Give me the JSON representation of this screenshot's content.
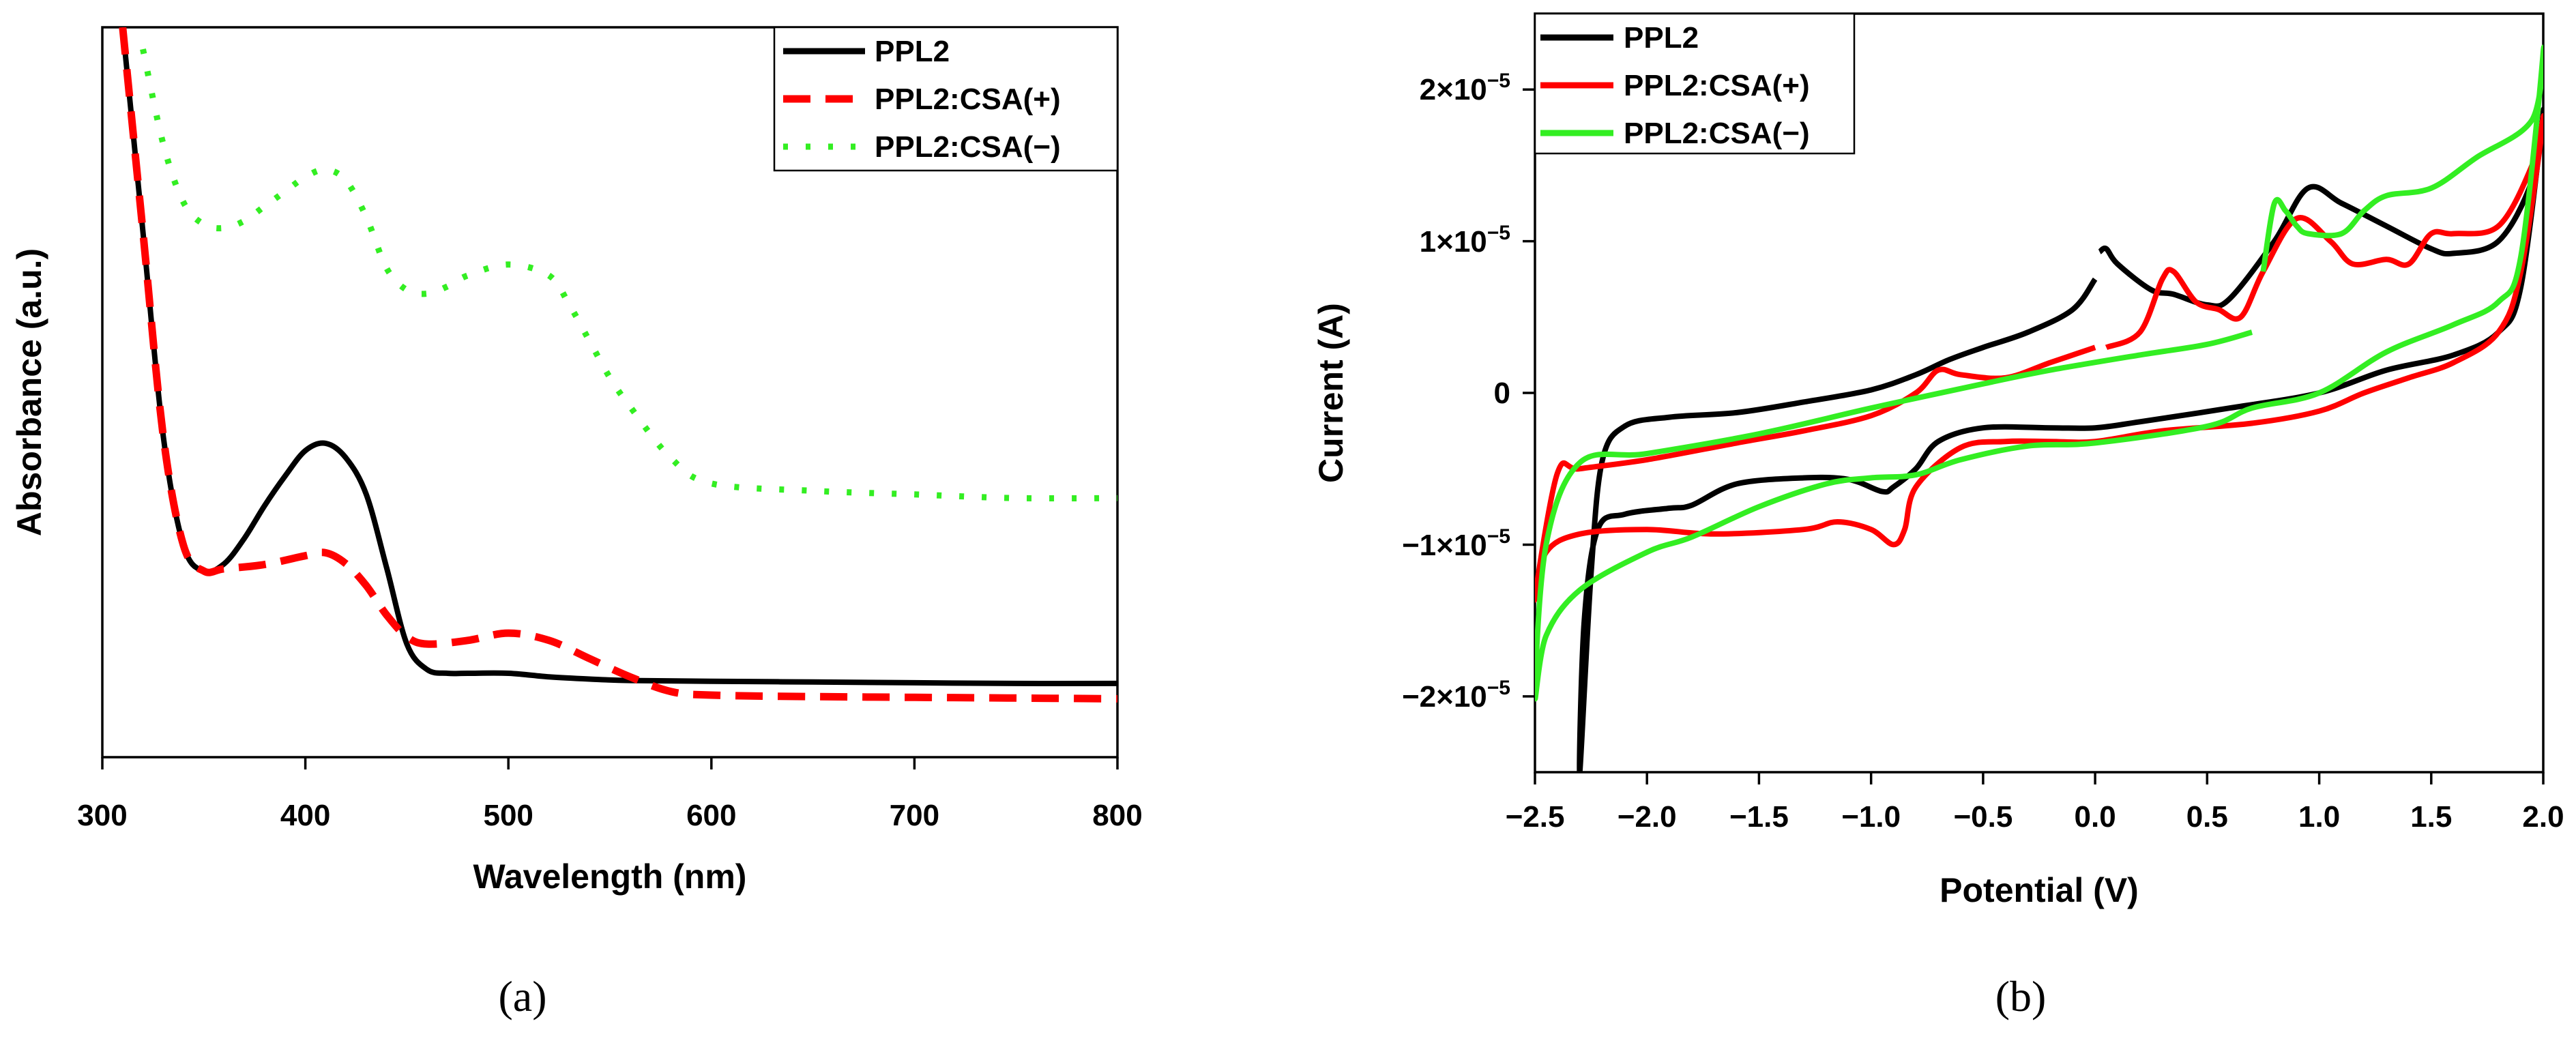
{
  "panel_labels": [
    "(a)",
    "(b)"
  ],
  "colors": {
    "black": "#000000",
    "red": "#ff0000",
    "green": "#33ee22"
  },
  "chart_data": [
    {
      "type": "line",
      "xlabel": "Wavelength (nm)",
      "ylabel": "Absorbance (a.u.)",
      "xlim": [
        300,
        800
      ],
      "ylim": [
        0,
        1
      ],
      "xticks": [
        300,
        400,
        500,
        600,
        700,
        800
      ],
      "xtick_labels": [
        "300",
        "400",
        "500",
        "600",
        "700",
        "800"
      ],
      "legend_position": "top-right",
      "series": [
        {
          "name": "PPL2",
          "color": "#000000",
          "dash": "solid",
          "x": [
            310,
            320,
            330,
            340,
            350,
            360,
            370,
            380,
            390,
            400,
            410,
            420,
            430,
            440,
            450,
            460,
            470,
            480,
            500,
            520,
            540,
            560,
            600,
            650,
            700,
            750,
            800
          ],
          "y": [
            1.0,
            0.72,
            0.44,
            0.29,
            0.255,
            0.265,
            0.3,
            0.345,
            0.385,
            0.42,
            0.43,
            0.41,
            0.36,
            0.26,
            0.155,
            0.12,
            0.115,
            0.115,
            0.115,
            0.11,
            0.107,
            0.105,
            0.104,
            0.103,
            0.102,
            0.101,
            0.101
          ]
        },
        {
          "name": "PPL2:CSA(+)",
          "color": "#ff0000",
          "dash": "long-dash",
          "x": [
            310,
            320,
            330,
            340,
            350,
            360,
            380,
            400,
            410,
            420,
            430,
            440,
            450,
            460,
            480,
            500,
            520,
            540,
            560,
            580,
            600,
            650,
            700,
            750,
            800
          ],
          "y": [
            1.0,
            0.72,
            0.44,
            0.29,
            0.255,
            0.258,
            0.264,
            0.276,
            0.28,
            0.265,
            0.235,
            0.195,
            0.165,
            0.155,
            0.16,
            0.17,
            0.16,
            0.135,
            0.11,
            0.09,
            0.085,
            0.083,
            0.082,
            0.081,
            0.08
          ]
        },
        {
          "name": "PPL2:CSA(−)",
          "color": "#33ee22",
          "dash": "dotted",
          "x": [
            320,
            330,
            340,
            350,
            360,
            370,
            380,
            390,
            400,
            410,
            420,
            430,
            440,
            450,
            460,
            470,
            480,
            500,
            520,
            530,
            540,
            550,
            560,
            580,
            600,
            650,
            700,
            750,
            800
          ],
          "y": [
            0.97,
            0.84,
            0.76,
            0.73,
            0.725,
            0.735,
            0.755,
            0.775,
            0.795,
            0.805,
            0.79,
            0.74,
            0.67,
            0.64,
            0.635,
            0.645,
            0.66,
            0.675,
            0.66,
            0.62,
            0.57,
            0.52,
            0.48,
            0.41,
            0.375,
            0.365,
            0.36,
            0.355,
            0.355
          ]
        }
      ]
    },
    {
      "type": "line",
      "xlabel": "Potential (V)",
      "ylabel": "Current (A)",
      "xlim": [
        -2.5,
        2.0
      ],
      "ylim": [
        -2.5e-05,
        2.5e-05
      ],
      "xticks": [
        -2.5,
        -2.0,
        -1.5,
        -1.0,
        -0.5,
        0.0,
        0.5,
        1.0,
        1.5,
        2.0
      ],
      "xtick_labels": [
        "−2.5",
        "−2.0",
        "−1.5",
        "−1.0",
        "−0.5",
        "0.0",
        "0.5",
        "1.0",
        "1.5",
        "2.0"
      ],
      "yticks": [
        -2e-05,
        -1e-05,
        0,
        1e-05,
        2e-05
      ],
      "ytick_labels": [
        {
          "base": "−2×10",
          "exp": "−5"
        },
        {
          "base": "−1×10",
          "exp": "−5"
        },
        {
          "base": "0",
          "exp": ""
        },
        {
          "base": "1×10",
          "exp": "−5"
        },
        {
          "base": "2×10",
          "exp": "−5"
        }
      ],
      "legend_position": "top-left",
      "series": [
        {
          "name": "PPL2",
          "color": "#000000",
          "dash": "solid",
          "x": [
            0.0,
            -0.1,
            -0.3,
            -0.5,
            -0.65,
            -0.8,
            -1.0,
            -1.3,
            -1.6,
            -1.9,
            -2.1,
            -2.2,
            -2.25,
            -2.3,
            -2.28,
            -2.22,
            -2.1,
            -1.9,
            -1.8,
            -1.6,
            -1.3,
            -1.1,
            -0.95,
            -0.9,
            -0.8,
            -0.7,
            -0.5,
            -0.2,
            0.0,
            0.2,
            0.6,
            1.0,
            1.3,
            1.6,
            1.8,
            1.9,
            2.0,
            1.95,
            1.8,
            1.6,
            1.5,
            1.3,
            1.1,
            0.95,
            0.8,
            0.6,
            0.5,
            0.35,
            0.25,
            0.1,
            0.05,
            0.02
          ],
          "y": [
            7.5e-06,
            5.5e-06,
            4e-06,
            3e-06,
            2.2e-06,
            1.2e-06,
            2e-07,
            -6e-07,
            -1.3e-06,
            -1.6e-06,
            -2.2e-06,
            -4.5e-06,
            -1.2e-05,
            -2.5e-05,
            -1.5e-05,
            -9e-06,
            -8e-06,
            -7.6e-06,
            -7.4e-06,
            -6e-06,
            -5.6e-06,
            -5.7e-06,
            -6.5e-06,
            -6.2e-06,
            -5e-06,
            -3.2e-06,
            -2.3e-06,
            -2.3e-06,
            -2.3e-06,
            -1.9e-06,
            -1e-06,
            0,
            1.5e-06,
            2.5e-06,
            4e-06,
            7e-06,
            1.85e-05,
            1.4e-05,
            1e-05,
            9.2e-06,
            9.5e-06,
            1.1e-05,
            1.25e-05,
            1.35e-05,
            1e-05,
            6.2e-06,
            5.8e-06,
            6.5e-06,
            6.8e-06,
            8.5e-06,
            9.5e-06,
            9.3e-06
          ]
        },
        {
          "name": "PPL2:CSA(+)",
          "color": "#ff0000",
          "dash": "solid",
          "x": [
            0.0,
            -0.2,
            -0.4,
            -0.6,
            -0.7,
            -0.8,
            -1.0,
            -1.3,
            -1.6,
            -2.0,
            -2.3,
            -2.4,
            -2.5,
            -2.45,
            -2.3,
            -2.0,
            -1.7,
            -1.3,
            -1.15,
            -1.0,
            -0.9,
            -0.85,
            -0.8,
            -0.6,
            -0.4,
            -0.2,
            0.0,
            0.3,
            0.7,
            1.0,
            1.2,
            1.4,
            1.6,
            1.8,
            1.9,
            2.0,
            1.95,
            1.8,
            1.6,
            1.5,
            1.4,
            1.3,
            1.15,
            1.05,
            0.9,
            0.75,
            0.65,
            0.55,
            0.45,
            0.35,
            0.3,
            0.2,
            0.05
          ],
          "y": [
            3e-06,
            2e-06,
            1e-06,
            1.2e-06,
            1.5e-06,
            0,
            -1.5e-06,
            -2.5e-06,
            -3.3e-06,
            -4.4e-06,
            -5e-06,
            -5.3e-06,
            -1.35e-05,
            -1.05e-05,
            -9.3e-06,
            -9e-06,
            -9.3e-06,
            -9e-06,
            -8.5e-06,
            -9e-06,
            -1e-05,
            -9e-06,
            -6.2e-06,
            -3.6e-06,
            -3.2e-06,
            -3.2e-06,
            -3.2e-06,
            -2.5e-06,
            -2e-06,
            -1.2e-06,
            0,
            1e-06,
            2e-06,
            4e-06,
            8e-06,
            1.8e-05,
            1.5e-05,
            1.1e-05,
            1.05e-05,
            1.05e-05,
            8.5e-06,
            8.8e-06,
            8.5e-06,
            1e-05,
            1.15e-05,
            8e-06,
            5e-06,
            5.5e-06,
            6e-06,
            8e-06,
            7.5e-06,
            4e-06,
            3e-06
          ]
        },
        {
          "name": "PPL2:CSA(−)",
          "color": "#33ee22",
          "dash": "solid",
          "x": [
            0.7,
            0.5,
            0.2,
            -0.2,
            -0.5,
            -1.0,
            -1.5,
            -2.0,
            -2.3,
            -2.45,
            -2.5,
            -2.45,
            -2.3,
            -2.0,
            -1.8,
            -1.5,
            -1.2,
            -1.0,
            -0.8,
            -0.6,
            -0.3,
            0.0,
            0.5,
            0.7,
            1.0,
            1.3,
            1.6,
            1.8,
            1.9,
            2.0,
            1.95,
            1.7,
            1.5,
            1.3,
            1.2,
            1.1,
            0.95,
            0.9,
            0.85,
            0.8,
            0.75
          ],
          "y": [
            4e-06,
            3.2e-06,
            2.5e-06,
            1.5e-06,
            6e-07,
            -1e-06,
            -2.7e-06,
            -4e-06,
            -4.6e-06,
            -1e-05,
            -2e-05,
            -1.6e-05,
            -1.3e-05,
            -1.05e-05,
            -9.5e-06,
            -7.5e-06,
            -6e-06,
            -5.6e-06,
            -5.4e-06,
            -4.4e-06,
            -3.5e-06,
            -3.3e-06,
            -2.2e-06,
            -1e-06,
            0,
            2.7e-06,
            4.5e-06,
            6e-06,
            9e-06,
            2.25e-05,
            1.8e-05,
            1.55e-05,
            1.35e-05,
            1.3e-05,
            1.2e-05,
            1.05e-05,
            1.05e-05,
            1.1e-05,
            1.2e-05,
            1.25e-05,
            8e-06
          ]
        }
      ]
    }
  ]
}
